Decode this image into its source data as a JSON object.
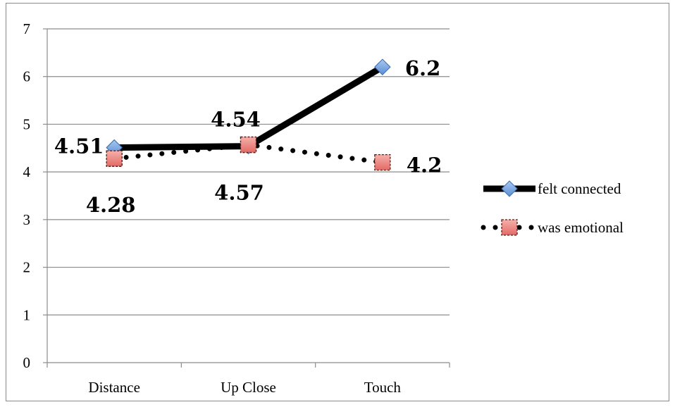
{
  "chart_data": {
    "type": "line",
    "title": "",
    "xlabel": "",
    "ylabel": "",
    "categories": [
      "Distance",
      "Up Close",
      "Touch"
    ],
    "ylim": [
      0,
      7
    ],
    "yticks": [
      0,
      1,
      2,
      3,
      4,
      5,
      6,
      7
    ],
    "grid": true,
    "legend_position": "right",
    "series": [
      {
        "name": "felt connected",
        "values": [
          4.51,
          4.54,
          6.2
        ],
        "data_labels": [
          "4.51",
          "4.54",
          "6.2"
        ],
        "line_style": "solid",
        "marker": "diamond",
        "line_color": "#000000",
        "marker_color": "#6f9fdc"
      },
      {
        "name": "was emotional",
        "values": [
          4.28,
          4.57,
          4.2
        ],
        "data_labels": [
          "4.28",
          "4.57",
          "4.2"
        ],
        "line_style": "dotted",
        "marker": "square",
        "line_color": "#000000",
        "marker_color": "#ec7f7a"
      }
    ]
  }
}
